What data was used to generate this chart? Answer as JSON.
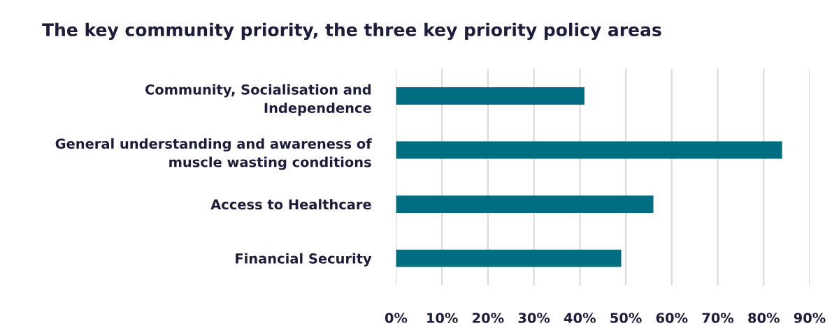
{
  "chart_data": {
    "type": "bar",
    "orientation": "horizontal",
    "title": "The key community priority, the three key priority policy areas",
    "categories": [
      "Community, Socialisation and\nIndependence",
      "General understanding and awareness of\nmuscle wasting conditions",
      "Access to Healthcare",
      "Financial Security"
    ],
    "values": [
      41,
      84,
      56,
      49
    ],
    "color": "#006d80",
    "xlim": [
      0,
      90
    ],
    "xticks": [
      {
        "value": 0,
        "label": "0%"
      },
      {
        "value": 10,
        "label": "10%"
      },
      {
        "value": 20,
        "label": "20%"
      },
      {
        "value": 30,
        "label": "30%"
      },
      {
        "value": 40,
        "label": "40%"
      },
      {
        "value": 50,
        "label": "50%"
      },
      {
        "value": 60,
        "label": "60%"
      },
      {
        "value": 70,
        "label": "70%"
      },
      {
        "value": 80,
        "label": "80%"
      },
      {
        "value": 90,
        "label": "90%"
      }
    ],
    "grid": "x",
    "legend": false
  }
}
